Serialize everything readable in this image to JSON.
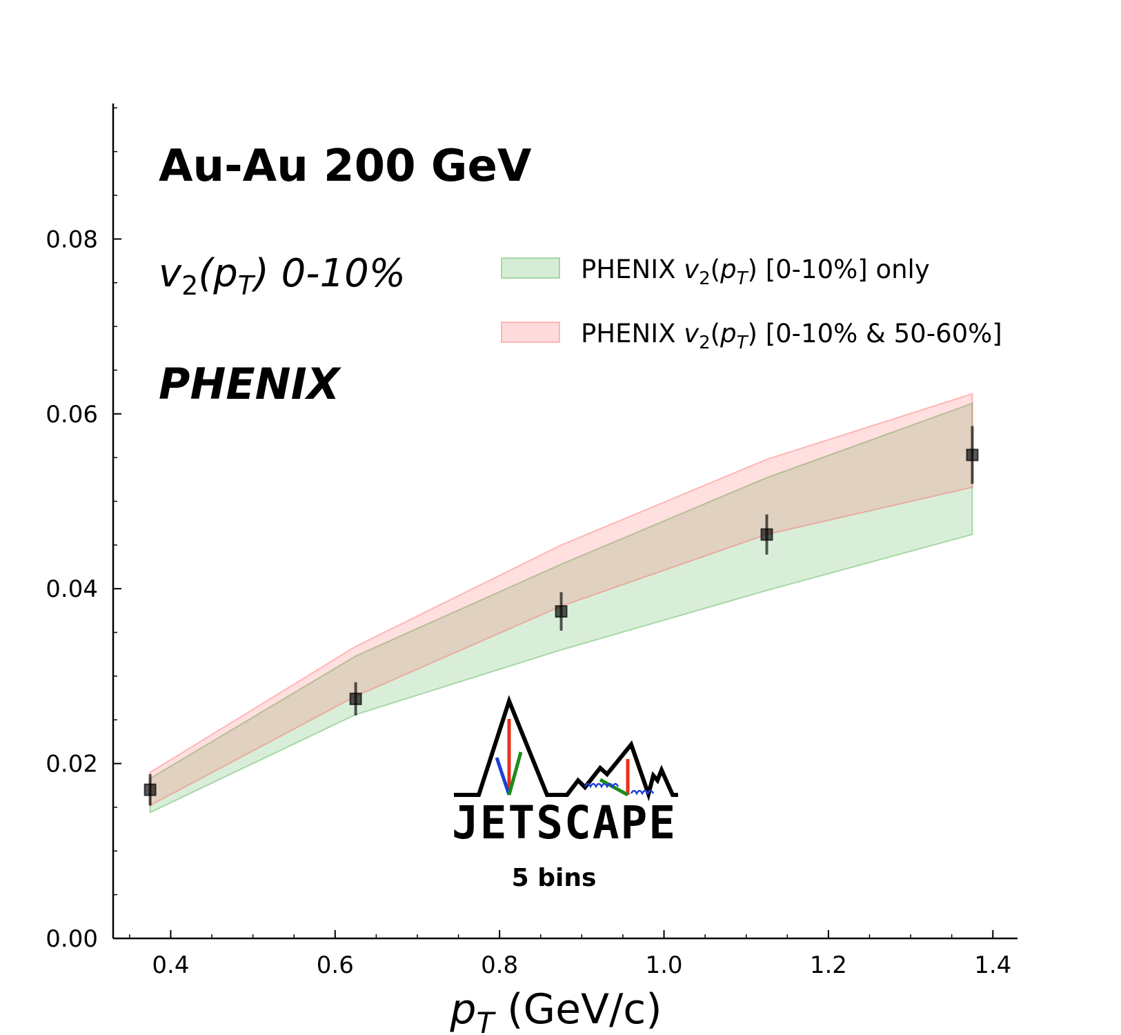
{
  "chart_data": {
    "type": "area",
    "title": "Au-Au 200 GeV",
    "subtitle": "v2(pT) 0-10%",
    "subtitle_parts": {
      "v": "v",
      "sub2": "2",
      "paren_open": "(",
      "p": "p",
      "subT": "T",
      "rest": ") 0-10%"
    },
    "experiment": "PHENIX",
    "annotation": "5 bins",
    "logo_text": "JETSCAPE",
    "xlabel": "p_T (GeV/c)",
    "xlabel_parts": {
      "p": "p",
      "sub": "T",
      "unit": " (GeV/c)"
    },
    "ylabel": "",
    "xlim": [
      0.33,
      1.43
    ],
    "ylim": [
      0.0,
      0.0955
    ],
    "xticks": [
      0.4,
      0.6,
      0.8,
      1.0,
      1.2,
      1.4
    ],
    "xtick_labels": [
      "0.4",
      "0.6",
      "0.8",
      "1.0",
      "1.2",
      "1.4"
    ],
    "yticks": [
      0.0,
      0.02,
      0.04,
      0.06,
      0.08
    ],
    "ytick_labels": [
      "0.00",
      "0.02",
      "0.04",
      "0.06",
      "0.08"
    ],
    "legend_position": "upper-right",
    "bands": [
      {
        "name": "PHENIX v2(pT) [0-10%] only",
        "label_parts": {
          "pre": "PHENIX ",
          "v": "v",
          "sub2": "2",
          "po": "(",
          "p": "p",
          "subT": "T",
          "post": ") [0-10%] only"
        },
        "color": "#2ca02c",
        "x": [
          0.375,
          0.625,
          0.875,
          1.125,
          1.375
        ],
        "lower": [
          0.0144,
          0.0256,
          0.033,
          0.0398,
          0.0462
        ],
        "upper": [
          0.0183,
          0.0323,
          0.0428,
          0.0527,
          0.0612
        ]
      },
      {
        "name": "PHENIX v2(pT) [0-10% & 50-60%]",
        "label_parts": {
          "pre": "PHENIX ",
          "v": "v",
          "sub2": "2",
          "po": "(",
          "p": "p",
          "subT": "T",
          "post": ") [0-10% & 50-60%]"
        },
        "color": "#ff4d4d",
        "x": [
          0.375,
          0.625,
          0.875,
          1.125,
          1.375
        ],
        "lower": [
          0.0152,
          0.0277,
          0.038,
          0.0462,
          0.0516
        ],
        "upper": [
          0.019,
          0.0334,
          0.045,
          0.0548,
          0.0623
        ]
      }
    ],
    "points": {
      "x": [
        0.375,
        0.625,
        0.875,
        1.125,
        1.375
      ],
      "y": [
        0.017,
        0.0274,
        0.0374,
        0.0462,
        0.0553
      ],
      "yerr": [
        0.0018,
        0.0019,
        0.0022,
        0.0023,
        0.0033
      ],
      "color": "#000000"
    }
  },
  "colors": {
    "axis": "#000000",
    "logo_red": "#e8301c",
    "logo_blue": "#1f3fd6",
    "logo_green": "#1a8c1a"
  }
}
